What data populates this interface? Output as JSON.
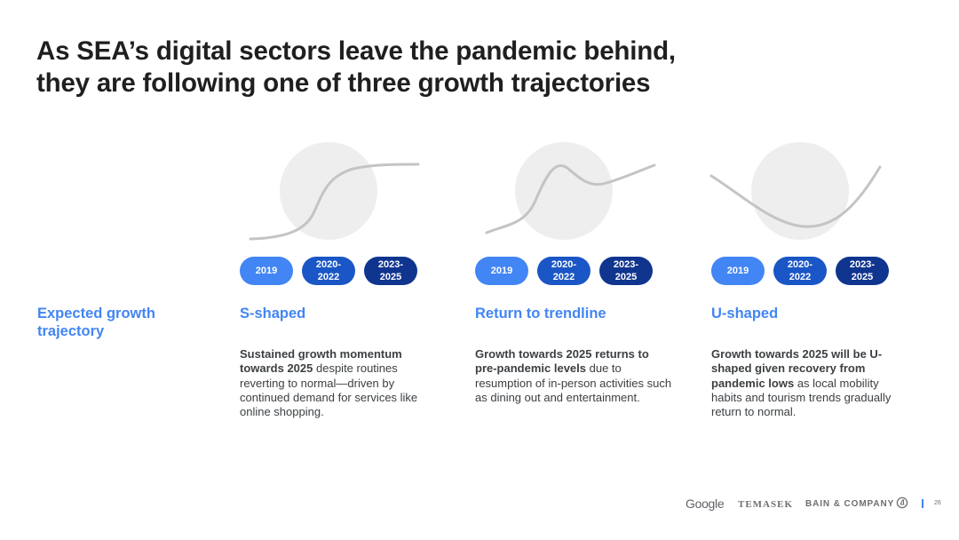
{
  "title": {
    "line1": "As SEA’s digital sectors leave the pandemic behind,",
    "line2": "they are following one of three growth trajectories"
  },
  "row_label": "Expected growth trajectory",
  "trajectories": [
    {
      "name": "S-shaped",
      "curve_icon": "s-curve-icon",
      "pills": [
        "2019",
        "2020-\n2022",
        "2023-\n2025"
      ],
      "desc_bold": "Sustained growth momentum towards 2025",
      "desc_rest": " despite routines reverting to normal—driven by continued demand for services like online shopping."
    },
    {
      "name": "Return to trendline",
      "curve_icon": "trendline-curve-icon",
      "pills": [
        "2019",
        "2020-\n2022",
        "2023-\n2025"
      ],
      "desc_bold": "Growth towards 2025 returns to pre-pandemic levels",
      "desc_rest": " due to resumption of in-person activities such as dining out and entertainment."
    },
    {
      "name": "U-shaped",
      "curve_icon": "u-curve-icon",
      "pills": [
        "2019",
        "2020-\n2022",
        "2023-\n2025"
      ],
      "desc_bold": "Growth towards 2025 will be U-shaped given recovery from pandemic lows",
      "desc_rest": " as local mobility habits and tourism trends gradually return to normal."
    }
  ],
  "footer": {
    "google": "Google",
    "temasek": "TEMASEK",
    "bain": "BAIN & COMPANY",
    "page_number": "26"
  },
  "colors": {
    "accent_blue": "#4285f4",
    "pill_2019": "#4285f4",
    "pill_2020_2022": "#1a56c6",
    "pill_2023_2025": "#10358f",
    "highlight_circle": "#eeeeee",
    "curve": "#c4c4c4"
  }
}
